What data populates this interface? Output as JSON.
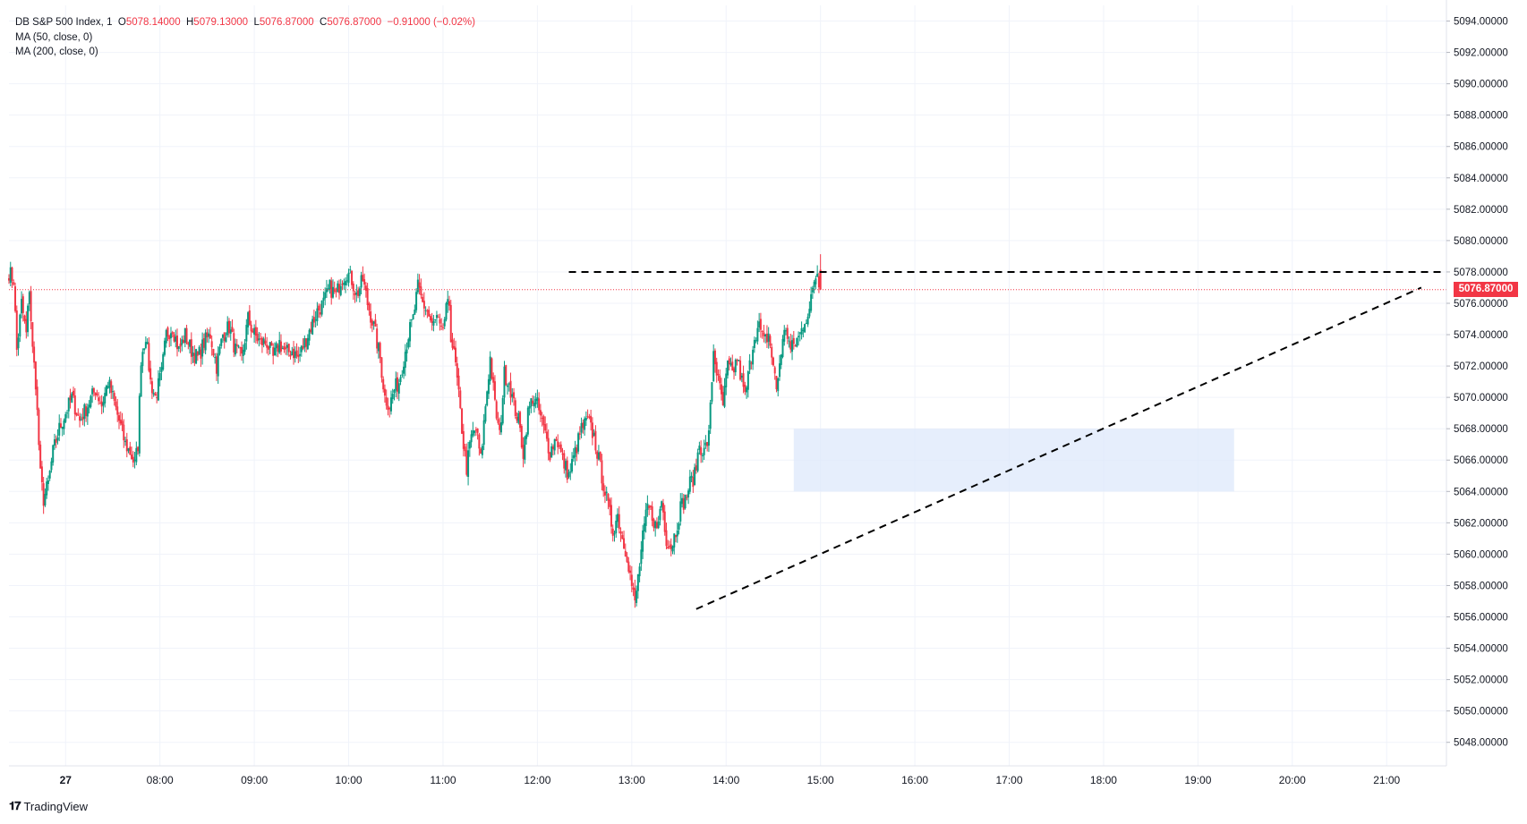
{
  "header": {
    "symbol": "DB S&P 500 Index, 1",
    "o_label": "O",
    "o_value": "5078.14000",
    "h_label": "H",
    "h_value": "5079.13000",
    "l_label": "L",
    "l_value": "5076.87000",
    "c_label": "C",
    "c_value": "5076.87000",
    "change": "−0.91000 (−0.02%)",
    "indicators": [
      "MA (50, close, 0)",
      "MA (200, close, 0)"
    ]
  },
  "last_price": "5076.87000",
  "brand": "TradingView",
  "colors": {
    "up": "#089981",
    "down": "#f23645",
    "zone": "#dde8fb",
    "grid": "#f0f3fa",
    "text": "#131722"
  },
  "chart_data": {
    "type": "candlestick",
    "y_axis": {
      "min": 5046.5,
      "max": 5095.0,
      "ticks": [
        5094,
        5092,
        5090,
        5088,
        5086,
        5084,
        5082,
        5080,
        5078,
        5076,
        5074,
        5072,
        5070,
        5068,
        5066,
        5064,
        5062,
        5060,
        5058,
        5056,
        5054,
        5052,
        5050,
        5048
      ],
      "tick_labels": [
        "5094.00000",
        "5092.00000",
        "5090.00000",
        "5088.00000",
        "5086.00000",
        "5084.00000",
        "5082.00000",
        "5080.00000",
        "5078.00000",
        "5076.00000",
        "5074.00000",
        "5072.00000",
        "5070.00000",
        "5068.00000",
        "5066.00000",
        "5064.00000",
        "5062.00000",
        "5060.00000",
        "5058.00000",
        "5056.00000",
        "5054.00000",
        "5052.00000",
        "5050.00000",
        "5048.00000"
      ]
    },
    "x_axis": {
      "labels": [
        "27",
        "08:00",
        "09:00",
        "10:00",
        "11:00",
        "12:00",
        "13:00",
        "14:00",
        "15:00",
        "16:00",
        "17:00",
        "18:00",
        "19:00",
        "20:00",
        "21:00"
      ],
      "label_minutes": [
        -24,
        36,
        96,
        156,
        216,
        276,
        336,
        396,
        456,
        516,
        576,
        636,
        696,
        756,
        816
      ],
      "range_minutes": [
        -60,
        854
      ]
    },
    "anchors": [
      [
        -60,
        5078
      ],
      [
        -57,
        5077.5
      ],
      [
        -55,
        5073
      ],
      [
        -52,
        5076
      ],
      [
        -49,
        5074
      ],
      [
        -47,
        5077
      ],
      [
        -45,
        5073
      ],
      [
        -43,
        5071
      ],
      [
        -40,
        5065
      ],
      [
        -38,
        5063.5
      ],
      [
        -35,
        5064.5
      ],
      [
        -32,
        5066.5
      ],
      [
        -28,
        5068
      ],
      [
        -24,
        5069
      ],
      [
        -20,
        5070
      ],
      [
        -15,
        5068.5
      ],
      [
        -10,
        5069.5
      ],
      [
        -5,
        5070.5
      ],
      [
        -1,
        5069.5
      ],
      [
        3,
        5071
      ],
      [
        6,
        5070
      ],
      [
        10,
        5068.5
      ],
      [
        14,
        5067
      ],
      [
        17,
        5066.5
      ],
      [
        20,
        5065.7
      ],
      [
        22,
        5067
      ],
      [
        24,
        5072.5
      ],
      [
        27,
        5074
      ],
      [
        30,
        5071
      ],
      [
        33,
        5070
      ],
      [
        37,
        5071.5
      ],
      [
        40,
        5074
      ],
      [
        44,
        5074.5
      ],
      [
        48,
        5073
      ],
      [
        52,
        5074
      ],
      [
        56,
        5073
      ],
      [
        60,
        5072.5
      ],
      [
        64,
        5073.5
      ],
      [
        68,
        5074
      ],
      [
        72,
        5072
      ],
      [
        76,
        5074
      ],
      [
        80,
        5074.5
      ],
      [
        84,
        5073
      ],
      [
        88,
        5072.5
      ],
      [
        92,
        5075
      ],
      [
        96,
        5074
      ],
      [
        100,
        5073.5
      ],
      [
        104,
        5073.5
      ],
      [
        108,
        5072.5
      ],
      [
        112,
        5073.5
      ],
      [
        116,
        5072.8
      ],
      [
        120,
        5073
      ],
      [
        124,
        5072.5
      ],
      [
        128,
        5073.5
      ],
      [
        132,
        5074.5
      ],
      [
        136,
        5075.5
      ],
      [
        140,
        5076
      ],
      [
        144,
        5077
      ],
      [
        148,
        5076.5
      ],
      [
        151,
        5077.5
      ],
      [
        155,
        5078
      ],
      [
        158,
        5077.5
      ],
      [
        161,
        5076.5
      ],
      [
        165,
        5077.5
      ],
      [
        168,
        5076
      ],
      [
        172,
        5074.5
      ],
      [
        176,
        5072.5
      ],
      [
        179,
        5070
      ],
      [
        182,
        5069.5
      ],
      [
        185,
        5070.5
      ],
      [
        188,
        5071
      ],
      [
        191,
        5072.5
      ],
      [
        194,
        5074
      ],
      [
        197,
        5075
      ],
      [
        200,
        5077
      ],
      [
        203,
        5076
      ],
      [
        206,
        5075.5
      ],
      [
        209,
        5074.5
      ],
      [
        212,
        5075
      ],
      [
        215,
        5074
      ],
      [
        218,
        5075.5
      ],
      [
        220,
        5076
      ],
      [
        221,
        5074
      ],
      [
        224,
        5072
      ],
      [
        227,
        5069
      ],
      [
        229,
        5067
      ],
      [
        231,
        5065.5
      ],
      [
        234,
        5067.5
      ],
      [
        237,
        5068
      ],
      [
        240,
        5066
      ],
      [
        243,
        5069.5
      ],
      [
        246,
        5072.5
      ],
      [
        249,
        5069.5
      ],
      [
        252,
        5067.5
      ],
      [
        255,
        5071.5
      ],
      [
        258,
        5071
      ],
      [
        261,
        5069.5
      ],
      [
        264,
        5068.5
      ],
      [
        267,
        5066.5
      ],
      [
        270,
        5069
      ],
      [
        273,
        5070
      ],
      [
        276,
        5069.5
      ],
      [
        280,
        5068
      ],
      [
        284,
        5066.5
      ],
      [
        288,
        5067.5
      ],
      [
        292,
        5066
      ],
      [
        296,
        5065
      ],
      [
        300,
        5066.5
      ],
      [
        304,
        5068
      ],
      [
        308,
        5068.5
      ],
      [
        312,
        5067.5
      ],
      [
        315,
        5066
      ],
      [
        318,
        5064.5
      ],
      [
        321,
        5063
      ],
      [
        324,
        5061.5
      ],
      [
        327,
        5062.5
      ],
      [
        330,
        5061
      ],
      [
        333,
        5060
      ],
      [
        336,
        5058
      ],
      [
        338,
        5056.8
      ],
      [
        340,
        5058.5
      ],
      [
        343,
        5061
      ],
      [
        346,
        5063
      ],
      [
        349,
        5062.5
      ],
      [
        352,
        5061.5
      ],
      [
        355,
        5063.5
      ],
      [
        358,
        5061
      ],
      [
        361,
        5060.5
      ],
      [
        364,
        5061.5
      ],
      [
        367,
        5063
      ],
      [
        370,
        5063.5
      ],
      [
        373,
        5064.5
      ],
      [
        376,
        5065
      ],
      [
        379,
        5067
      ],
      [
        382,
        5066.5
      ],
      [
        385,
        5067.5
      ],
      [
        388,
        5073
      ],
      [
        391,
        5071
      ],
      [
        394,
        5069.5
      ],
      [
        397,
        5072
      ],
      [
        400,
        5071.5
      ],
      [
        403,
        5072.5
      ],
      [
        406,
        5071
      ],
      [
        408,
        5070
      ],
      [
        411,
        5072
      ],
      [
        414,
        5074
      ],
      [
        417,
        5074.5
      ],
      [
        420,
        5073.5
      ],
      [
        423,
        5074
      ],
      [
        426,
        5072
      ],
      [
        428,
        5070.5
      ],
      [
        431,
        5073
      ],
      [
        434,
        5074.5
      ],
      [
        437,
        5073
      ],
      [
        440,
        5073.5
      ],
      [
        443,
        5074
      ],
      [
        446,
        5075
      ],
      [
        449,
        5075.5
      ],
      [
        452,
        5077.5
      ],
      [
        454,
        5078
      ],
      [
        456,
        5076.87
      ]
    ],
    "candles_per_minute": 1,
    "annotations": {
      "resistance_level": 5078.0,
      "resistance_from_minute": 296,
      "support_line": [
        [
          377,
          5056.5
        ],
        [
          838,
          5077
        ]
      ],
      "range_box": {
        "from_minute": 439,
        "to_minute": 719,
        "low": 5064.0,
        "high": 5068.0
      },
      "last_price_line": 5076.87
    }
  }
}
